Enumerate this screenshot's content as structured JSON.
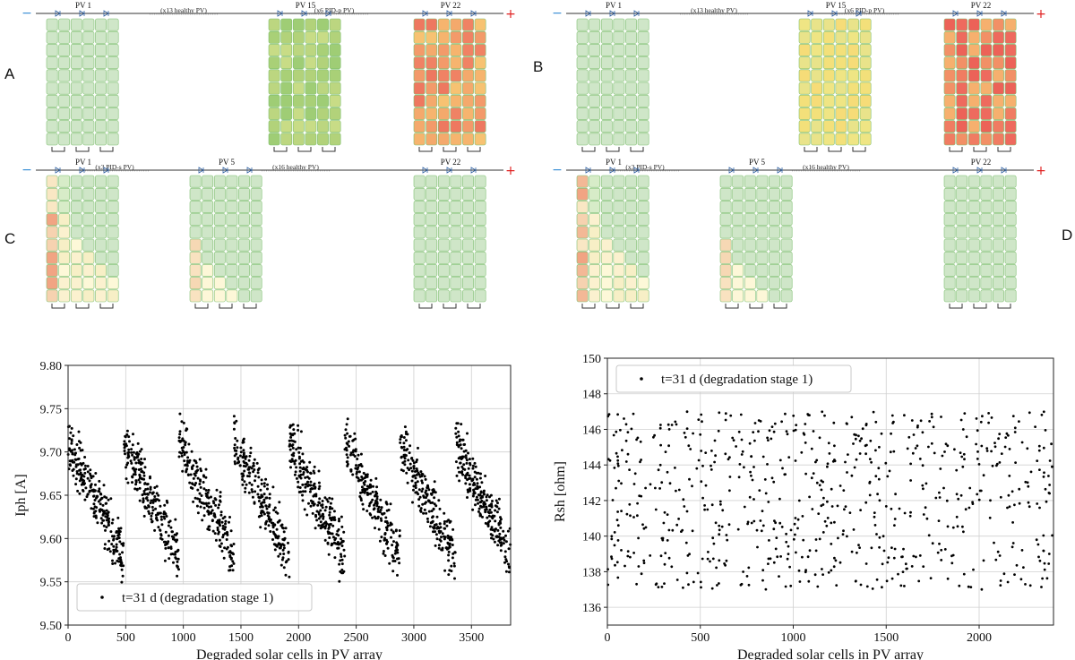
{
  "panels": [
    {
      "letter": "A",
      "modules": [
        "PV 1",
        "PV 15",
        "PV 22"
      ],
      "gaps": [
        "(x13 healthy PV)",
        "(x6 PID-p PV)"
      ],
      "pattern": [
        "healthy",
        "mild-p",
        "severe-p"
      ]
    },
    {
      "letter": "B",
      "modules": [
        "PV 1",
        "PV 15",
        "PV 22"
      ],
      "gaps": [
        "(x13 healthy PV)",
        "(x6 PID-p PV)"
      ],
      "pattern": [
        "healthy",
        "yellow-p",
        "severe-p-strong"
      ]
    },
    {
      "letter": "C",
      "modules": [
        "PV 1",
        "PV 5",
        "PV 22"
      ],
      "gaps": [
        "(x3 PID-s PV)",
        "(x16 healthy PV)"
      ],
      "pattern": [
        "s-strong",
        "s-light",
        "healthy"
      ]
    },
    {
      "letter": "D",
      "modules": [
        "PV 1",
        "PV 5",
        "PV 22"
      ],
      "gaps": [
        "(x3 PID-s PV)",
        "(x16 healthy PV)"
      ],
      "pattern": [
        "s-strong-2",
        "s-light-2",
        "healthy"
      ]
    }
  ],
  "terminals": {
    "minus": "−",
    "plus": "+"
  },
  "colors": {
    "healthy": "#cfe6c8",
    "cell_border": "#7fbf70",
    "wire": "#333333",
    "minus": "#3a8fd6",
    "plus": "#e02020"
  },
  "chart_data": [
    {
      "type": "scatter",
      "xlabel": "Degraded solar cells in PV array",
      "ylabel": "Iph [A]",
      "xlim": [
        0,
        3840
      ],
      "ylim": [
        9.5,
        9.8
      ],
      "xticks": [
        0,
        500,
        1000,
        1500,
        2000,
        2500,
        3000,
        3500
      ],
      "yticks": [
        9.5,
        9.55,
        9.6,
        9.65,
        9.7,
        9.75,
        9.8
      ],
      "ytick_labels": [
        "9.50",
        "9.55",
        "9.60",
        "9.65",
        "9.70",
        "9.75",
        "9.80"
      ],
      "legend": "t=31 d (degradation stage 1)",
      "legend_position": "bottom-left",
      "grid": true,
      "pattern": "sawtooth",
      "period": 480,
      "high": 9.71,
      "low": 9.58,
      "spread": 0.02,
      "count": 1800
    },
    {
      "type": "scatter",
      "xlabel": "Degraded solar cells in PV array",
      "ylabel": "Rsh [ohm]",
      "xlim": [
        0,
        2400
      ],
      "ylim": [
        135,
        150
      ],
      "xticks": [
        0,
        500,
        1000,
        1500,
        2000
      ],
      "yticks": [
        136,
        138,
        140,
        142,
        144,
        146,
        148,
        150
      ],
      "ytick_labels": [
        "136",
        "138",
        "140",
        "142",
        "144",
        "146",
        "148",
        "150"
      ],
      "legend": "t=31 d (degradation stage 1)",
      "legend_position": "top-left",
      "grid": true,
      "pattern": "uniform",
      "low": 137,
      "high": 147,
      "count": 700
    }
  ]
}
